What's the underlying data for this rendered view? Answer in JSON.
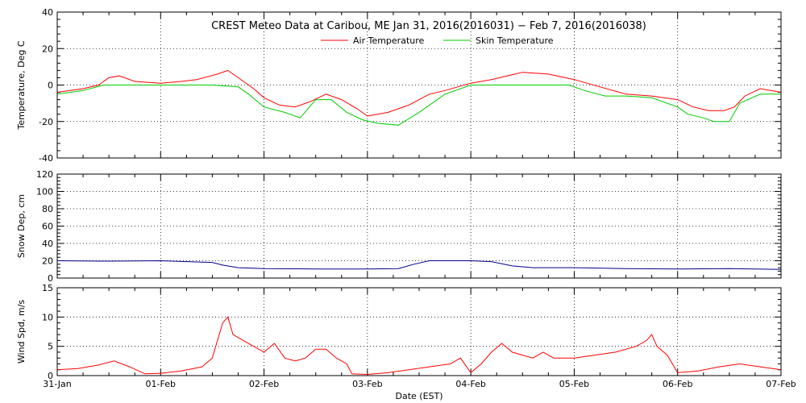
{
  "chart_data": {
    "type": "line",
    "title": "CREST Meteo Data at Caribou, ME   Jan 31, 2016(2016031) − Feb  7, 2016(2016038)",
    "xlabel": "Date (EST)",
    "x_ticks": [
      "31-Jan",
      "01-Feb",
      "02-Feb",
      "03-Feb",
      "04-Feb",
      "05-Feb",
      "06-Feb",
      "07-Feb"
    ],
    "xlim_days": [
      0,
      7
    ],
    "grid": true,
    "legend_position": "top-center",
    "panels": [
      {
        "name": "temperature",
        "ylabel": "Temperature, Deg C",
        "ylim": [
          -40,
          40
        ],
        "yticks": [
          -40,
          -20,
          0,
          20,
          40
        ],
        "series": [
          {
            "name": "Air Temperature",
            "color": "#ff0000",
            "x": [
              0,
              0.25,
              0.4,
              0.5,
              0.6,
              0.75,
              1.0,
              1.2,
              1.35,
              1.55,
              1.65,
              1.75,
              1.9,
              2.0,
              2.15,
              2.3,
              2.45,
              2.6,
              2.75,
              2.9,
              3.0,
              3.2,
              3.4,
              3.6,
              3.75,
              4.0,
              4.2,
              4.5,
              4.75,
              5.0,
              5.25,
              5.5,
              5.75,
              6.0,
              6.15,
              6.3,
              6.45,
              6.55,
              6.65,
              6.8,
              7.0
            ],
            "y": [
              -4,
              -2,
              0,
              4,
              5,
              2,
              1,
              2,
              3,
              6,
              8,
              4,
              -2,
              -7,
              -11,
              -12,
              -9,
              -5,
              -8,
              -13,
              -17,
              -15,
              -11,
              -5,
              -3,
              1,
              3,
              7,
              6,
              3,
              -1,
              -5,
              -6,
              -8,
              -12,
              -14,
              -14,
              -12,
              -6,
              -2,
              -4
            ]
          },
          {
            "name": "Skin Temperature",
            "color": "#00cc00",
            "x": [
              0,
              0.25,
              0.45,
              0.6,
              0.75,
              1.0,
              1.25,
              1.5,
              1.75,
              1.85,
              2.0,
              2.2,
              2.35,
              2.5,
              2.65,
              2.8,
              2.95,
              3.1,
              3.3,
              3.5,
              3.75,
              4.0,
              4.5,
              4.95,
              5.1,
              5.3,
              5.5,
              5.75,
              5.9,
              6.0,
              6.1,
              6.25,
              6.35,
              6.5,
              6.6,
              6.8,
              7.0
            ],
            "y": [
              -5,
              -3,
              0,
              0,
              0,
              0,
              0,
              0,
              -1,
              -5,
              -12,
              -15,
              -18,
              -8,
              -8,
              -15,
              -19,
              -21,
              -22,
              -15,
              -5,
              0,
              0,
              0,
              -3,
              -6,
              -6,
              -7,
              -10,
              -12,
              -16,
              -18,
              -20,
              -20,
              -10,
              -5,
              -5
            ]
          }
        ]
      },
      {
        "name": "snow",
        "ylabel": "Snow Dep, cm",
        "ylim": [
          0,
          120
        ],
        "yticks": [
          0,
          20,
          40,
          60,
          80,
          100,
          120
        ],
        "series": [
          {
            "color": "#00008b",
            "x": [
              0,
              0.5,
              1.0,
              1.5,
              1.6,
              1.75,
              2.0,
              2.5,
              3.0,
              3.3,
              3.45,
              3.6,
              4.0,
              4.2,
              4.4,
              4.6,
              5.0,
              5.5,
              6.0,
              6.5,
              7.0
            ],
            "y": [
              20,
              19.5,
              20,
              18,
              15,
              12,
              11,
              10.5,
              10.5,
              11,
              16,
              20,
              20,
              19,
              14,
              12,
              12,
              11,
              10.5,
              11,
              10
            ]
          }
        ]
      },
      {
        "name": "wind",
        "ylabel": "Wind Spd, m/s",
        "ylim": [
          0,
          15
        ],
        "yticks": [
          0,
          5,
          10,
          15
        ],
        "series": [
          {
            "color": "#ff0000",
            "x": [
              0,
              0.2,
              0.4,
              0.55,
              0.7,
              0.85,
              1.0,
              1.2,
              1.4,
              1.5,
              1.55,
              1.6,
              1.65,
              1.7,
              1.8,
              1.9,
              2.0,
              2.1,
              2.2,
              2.3,
              2.4,
              2.5,
              2.6,
              2.7,
              2.8,
              2.85,
              3.0,
              3.2,
              3.4,
              3.6,
              3.8,
              3.9,
              4.0,
              4.1,
              4.2,
              4.3,
              4.4,
              4.5,
              4.6,
              4.7,
              4.8,
              5.0,
              5.2,
              5.4,
              5.6,
              5.7,
              5.75,
              5.8,
              5.9,
              6.0,
              6.2,
              6.4,
              6.6,
              6.8,
              7.0
            ],
            "y": [
              1,
              1.2,
              1.8,
              2.5,
              1.5,
              0.3,
              0.4,
              0.8,
              1.5,
              3,
              6,
              9,
              10,
              7,
              6,
              5,
              4,
              5.5,
              3,
              2.5,
              3,
              4.5,
              4.5,
              3,
              2,
              0.3,
              0.2,
              0.5,
              1,
              1.5,
              2,
              3,
              0.5,
              2,
              4,
              5.5,
              4,
              3.5,
              3,
              4,
              3,
              3,
              3.5,
              4,
              5,
              6,
              7,
              5,
              3.5,
              0.5,
              0.8,
              1.5,
              2,
              1.5,
              1
            ]
          }
        ]
      }
    ]
  }
}
